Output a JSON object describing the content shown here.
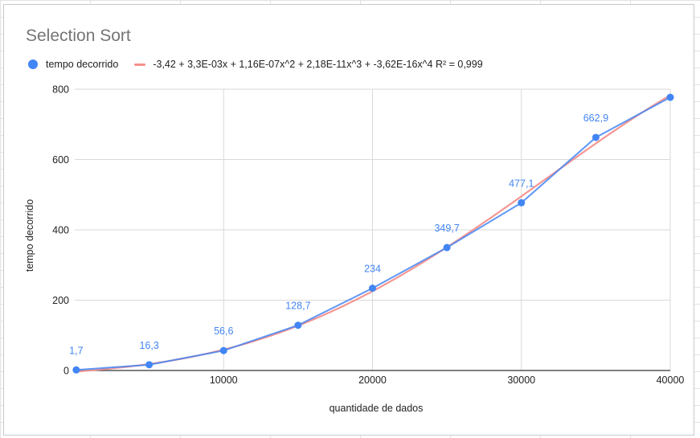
{
  "chart_data": {
    "type": "scatter",
    "title": "Selection Sort",
    "xlabel": "quantidade de dados",
    "ylabel": "tempo decorrido",
    "xlim": [
      0,
      40000
    ],
    "ylim": [
      0,
      800
    ],
    "x_ticks": [
      10000,
      20000,
      30000,
      40000
    ],
    "y_ticks": [
      0,
      200,
      400,
      600,
      800
    ],
    "grid": true,
    "legend_placement": "top-left",
    "series": [
      {
        "name": "tempo decorrido",
        "color": "#4285f4",
        "x": [
          100,
          5000,
          10000,
          15000,
          20000,
          25000,
          30000,
          35000,
          40000
        ],
        "y": [
          1.7,
          16.3,
          56.6,
          128.7,
          234,
          349.7,
          477.1,
          662.9,
          777
        ],
        "data_labels": [
          "1,7",
          "16,3",
          "56,6",
          "128,7",
          "234",
          "349,7",
          "477,1",
          "662,9",
          ""
        ]
      }
    ],
    "trendline": {
      "type": "polynomial",
      "degree": 4,
      "label": "-3,42 + 3,3E-03x + 1,16E-07x^2 + 2,18E-11x^3 + -3,62E-16x^4 R² = 0,999",
      "coefficients": [
        -3.42,
        0.0033,
        1.16e-07,
        2.18e-11,
        -3.62e-16
      ],
      "r_squared": 0.999,
      "color": "#f4908d"
    }
  }
}
